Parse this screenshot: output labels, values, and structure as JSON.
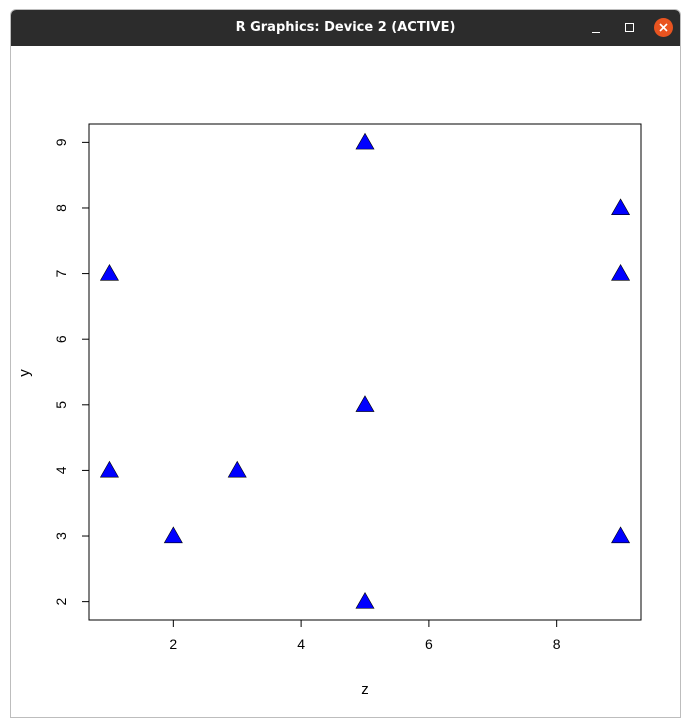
{
  "window": {
    "title": "R Graphics: Device 2 (ACTIVE)",
    "controls": {
      "minimize_icon": "minimize-icon",
      "maximize_icon": "maximize-icon",
      "close_icon": "close-icon",
      "close_color": "#e95420"
    }
  },
  "chart_data": {
    "type": "scatter",
    "xlabel": "z",
    "ylabel": "y",
    "xlim": [
      0.68,
      9.32
    ],
    "ylim": [
      1.72,
      9.28
    ],
    "x_ticks": [
      2,
      4,
      6,
      8
    ],
    "y_ticks": [
      2,
      3,
      4,
      5,
      6,
      7,
      8,
      9
    ],
    "marker": "filled-triangle",
    "marker_color": "#0000ff",
    "grid": false,
    "points": [
      {
        "x": 5,
        "y": 9
      },
      {
        "x": 9,
        "y": 8
      },
      {
        "x": 1,
        "y": 7
      },
      {
        "x": 9,
        "y": 7
      },
      {
        "x": 5,
        "y": 5
      },
      {
        "x": 1,
        "y": 4
      },
      {
        "x": 3,
        "y": 4
      },
      {
        "x": 2,
        "y": 3
      },
      {
        "x": 9,
        "y": 3
      },
      {
        "x": 5,
        "y": 2
      }
    ]
  }
}
